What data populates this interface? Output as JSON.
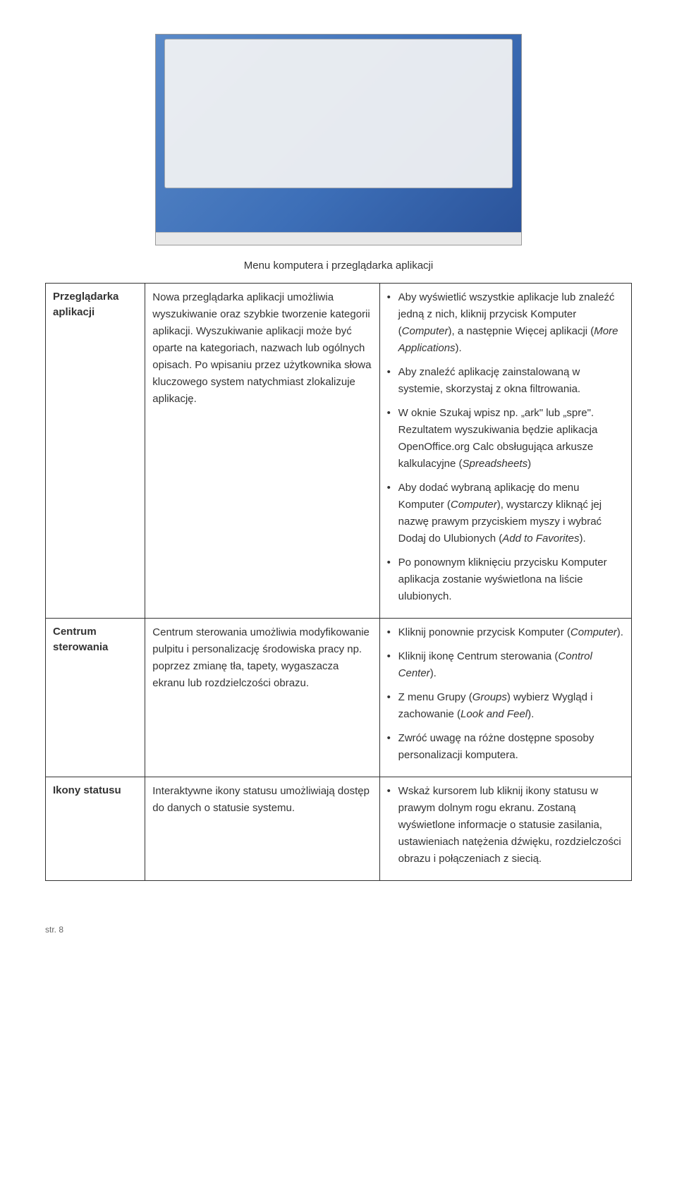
{
  "caption": "Menu komputera i przeglądarka aplikacji",
  "rows": [
    {
      "label": "Przeglądarka aplikacji",
      "desc": "Nowa przeglądarka aplikacji umożliwia wyszukiwanie oraz szybkie tworzenie kategorii aplikacji. Wyszukiwanie aplikacji może być oparte na kategoriach, nazwach lub ogólnych opisach. Po wpisaniu przez użytkownika słowa kluczowego system natychmiast zlokalizuje aplikację.",
      "bullets": [
        "Aby wyświetlić wszystkie aplikacje lub znaleźć jedną z nich, kliknij przycisk Komputer (<i>Computer</i>), a następnie Więcej aplikacji (<i>More Applications</i>).",
        "Aby znaleźć aplikację zainstalowaną w systemie, skorzystaj z okna filtrowania.",
        "W oknie Szukaj wpisz np. „ark\" lub „spre\". Rezultatem wyszukiwania będzie aplikacja OpenOffice.org Calc obsługująca arkusze kalkulacyjne (<i>Spreadsheets</i>)",
        "Aby dodać wybraną aplikację do menu Komputer (<i>Computer</i>), wystarczy kliknąć jej nazwę prawym przyciskiem myszy i wybrać Dodaj do Ulubionych (<i>Add to Favorites</i>).",
        "Po ponownym kliknięciu przycisku Komputer aplikacja zostanie wyświetlona na liście ulubionych."
      ]
    },
    {
      "label": "Centrum sterowania",
      "desc": "Centrum sterowania umożliwia modyfikowanie pulpitu i personalizację środowiska pracy np. poprzez zmianę tła, tapety, wygaszacza ekranu lub rozdzielczości obrazu.",
      "bullets": [
        "Kliknij ponownie przycisk Komputer (<i>Computer</i>).",
        "Kliknij ikonę Centrum sterowania (<i>Control Center</i>).",
        "Z menu Grupy (<i>Groups</i>) wybierz Wygląd i zachowanie (<i>Look and Feel</i>).",
        "Zwróć uwagę na różne dostępne sposoby personalizacji komputera."
      ]
    },
    {
      "label": "Ikony statusu",
      "desc": "Interaktywne ikony statusu umożliwiają dostęp do danych o statusie systemu.",
      "bullets": [
        "Wskaż kursorem lub kliknij ikony statusu w prawym dolnym rogu ekranu. Zostaną wyświetlone informacje o statusie zasilania, ustawieniach natężenia dźwięku, rozdzielczości obrazu i połączeniach z siecią."
      ]
    }
  ],
  "footer": "str. 8"
}
